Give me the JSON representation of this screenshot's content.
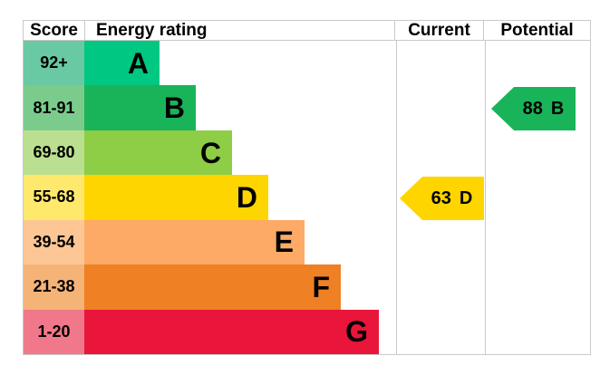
{
  "header": {
    "score": "Score",
    "energy_rating": "Energy rating",
    "current": "Current",
    "potential": "Potential"
  },
  "chart_data": {
    "type": "bar",
    "orientation": "horizontal",
    "title": "Energy rating",
    "categories": [
      "A",
      "B",
      "C",
      "D",
      "E",
      "F",
      "G"
    ],
    "score_ranges": [
      "92+",
      "81-91",
      "69-80",
      "55-68",
      "39-54",
      "21-38",
      "1-20"
    ],
    "bands": [
      {
        "label": "A",
        "score": "92+",
        "color": "#00c781",
        "tint": "#69c9a2"
      },
      {
        "label": "B",
        "score": "81-91",
        "color": "#19b459",
        "tint": "#7bcc8c"
      },
      {
        "label": "C",
        "score": "69-80",
        "color": "#8dce46",
        "tint": "#bbdf90"
      },
      {
        "label": "D",
        "score": "55-68",
        "color": "#ffd500",
        "tint": "#ffe96d"
      },
      {
        "label": "E",
        "score": "39-54",
        "color": "#fcaa65",
        "tint": "#fdc795"
      },
      {
        "label": "F",
        "score": "21-38",
        "color": "#ef8023",
        "tint": "#f5b377"
      },
      {
        "label": "G",
        "score": "1-20",
        "color": "#e9153b",
        "tint": "#f1788a"
      }
    ],
    "markers": {
      "current": {
        "value": "63",
        "band": "D",
        "color": "#ffd500"
      },
      "potential": {
        "value": "88",
        "band": "B",
        "color": "#19b459"
      }
    },
    "grid": false,
    "legend_position": "none",
    "border_color": "#c9c9c9"
  }
}
